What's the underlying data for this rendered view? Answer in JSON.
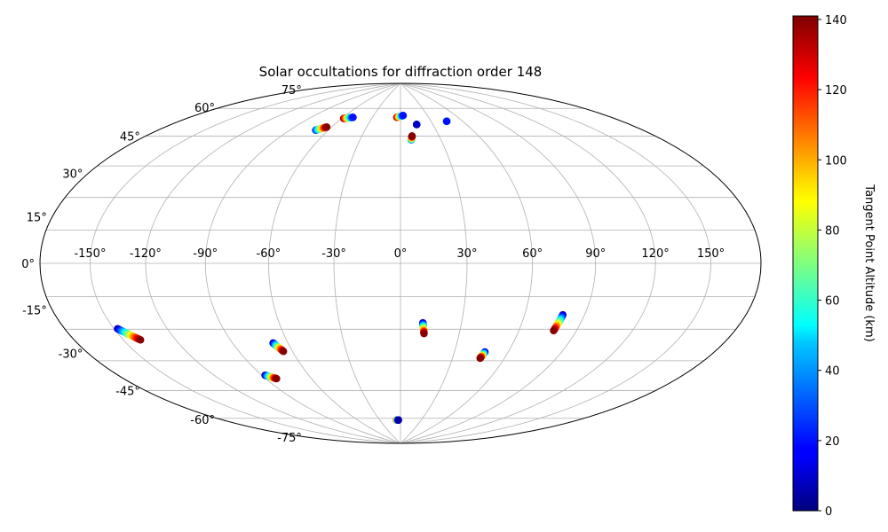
{
  "chart_data": {
    "type": "scatter",
    "projection": "hammer",
    "title": "Solar occultations for diffraction order 148",
    "lon_ticks": [
      "-150°",
      "-120°",
      "-90°",
      "-60°",
      "-30°",
      "0°",
      "30°",
      "60°",
      "90°",
      "120°",
      "150°"
    ],
    "lon_tick_values": [
      -150,
      -120,
      -90,
      -60,
      -30,
      0,
      30,
      60,
      90,
      120,
      150
    ],
    "lat_ticks": [
      "-75°",
      "-60°",
      "-45°",
      "-30°",
      "-15°",
      "0°",
      "15°",
      "30°",
      "45°",
      "60°",
      "75°"
    ],
    "lat_tick_values": [
      -75,
      -60,
      -45,
      -30,
      -15,
      0,
      15,
      30,
      45,
      60,
      75
    ],
    "grid": true,
    "colorbar": {
      "label": "Tangent Point Altitude (km)",
      "range": [
        0,
        141
      ],
      "ticks": [
        "0",
        "20",
        "40",
        "60",
        "80",
        "100",
        "120",
        "140"
      ],
      "tick_values": [
        0,
        20,
        40,
        60,
        80,
        100,
        120,
        140
      ],
      "colormap": "jet"
    },
    "occultations": [
      {
        "start": [
          -70,
          61
        ],
        "end": [
          -64,
          63
        ],
        "alt_start": 20,
        "alt_end": 140
      },
      {
        "start": [
          -58,
          68
        ],
        "end": [
          -50,
          69
        ],
        "alt_start": 140,
        "alt_end": 20
      },
      {
        "start": [
          -4,
          70
        ],
        "end": [
          3,
          71
        ],
        "alt_start": 140,
        "alt_end": 20
      },
      {
        "start": [
          8,
          58
        ],
        "end": [
          9,
          60
        ],
        "alt_start": 30,
        "alt_end": 140
      },
      {
        "start": [
          15,
          66
        ],
        "end": [
          15,
          66
        ],
        "alt_start": 140,
        "alt_end": 10
      },
      {
        "start": [
          45,
          67
        ],
        "end": [
          45,
          67
        ],
        "alt_start": 140,
        "alt_end": 20
      },
      {
        "start": [
          -148,
          -24
        ],
        "end": [
          -140,
          -29
        ],
        "alt_start": 5,
        "alt_end": 140
      },
      {
        "start": [
          -88,
          -49
        ],
        "end": [
          -83,
          -51
        ],
        "alt_start": 5,
        "alt_end": 140
      },
      {
        "start": [
          -68,
          -35
        ],
        "end": [
          -65,
          -39
        ],
        "alt_start": 5,
        "alt_end": 140
      },
      {
        "start": [
          -6,
          -76
        ],
        "end": [
          -3,
          -76
        ],
        "alt_start": 120,
        "alt_end": 5
      },
      {
        "start": [
          11,
          -27
        ],
        "end": [
          12,
          -32
        ],
        "alt_start": 5,
        "alt_end": 140
      },
      {
        "start": [
          47,
          -40
        ],
        "end": [
          46,
          -43
        ],
        "alt_start": 5,
        "alt_end": 140
      },
      {
        "start": [
          79,
          -22
        ],
        "end": [
          78,
          -29
        ],
        "alt_start": 5,
        "alt_end": 140
      }
    ]
  }
}
